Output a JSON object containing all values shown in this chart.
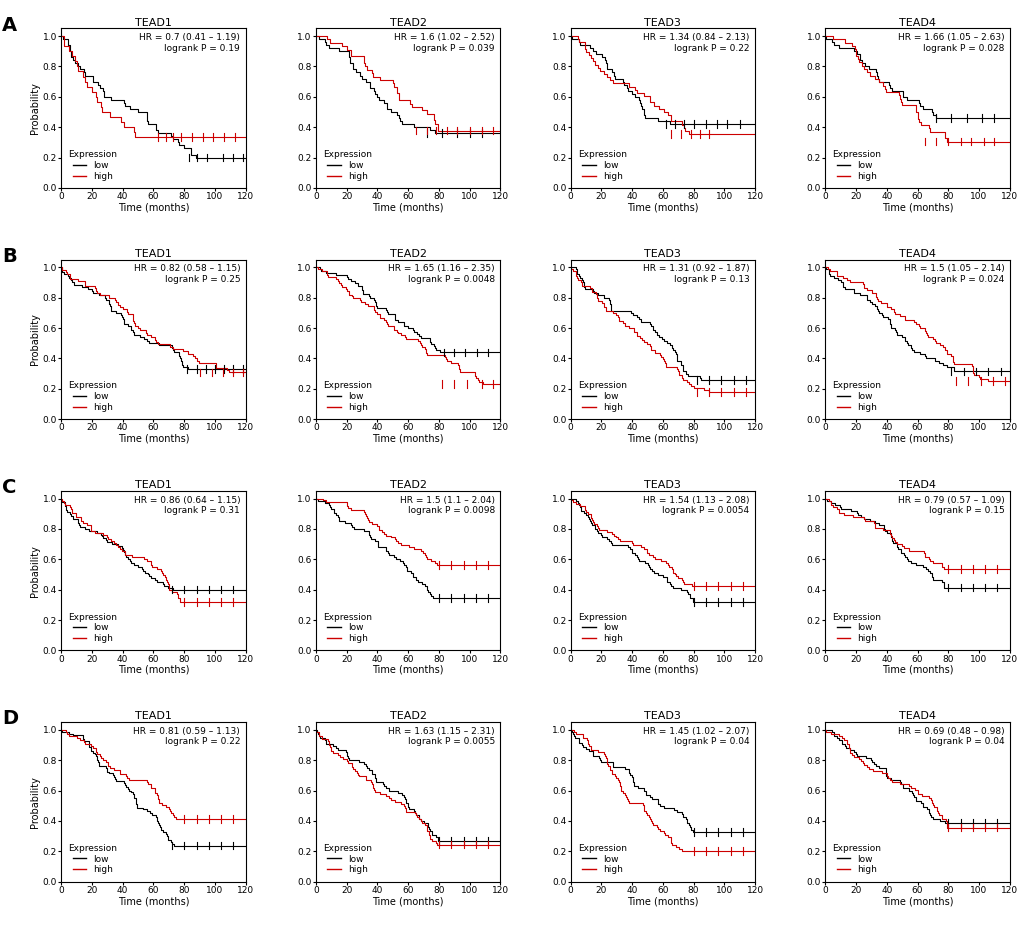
{
  "panels": [
    [
      {
        "title": "TEAD1",
        "hr": "HR = 0.7 (0.41 – 1.19)",
        "p": "logrank P = 0.19"
      },
      {
        "title": "TEAD2",
        "hr": "HR = 1.6 (1.02 – 2.52)",
        "p": "logrank P = 0.039"
      },
      {
        "title": "TEAD3",
        "hr": "HR = 1.34 (0.84 – 2.13)",
        "p": "logrank P = 0.22"
      },
      {
        "title": "TEAD4",
        "hr": "HR = 1.66 (1.05 – 2.63)",
        "p": "logrank P = 0.028"
      }
    ],
    [
      {
        "title": "TEAD1",
        "hr": "HR = 0.82 (0.58 – 1.15)",
        "p": "logrank P = 0.25"
      },
      {
        "title": "TEAD2",
        "hr": "HR = 1.65 (1.16 – 2.35)",
        "p": "logrank P = 0.0048"
      },
      {
        "title": "TEAD3",
        "hr": "HR = 1.31 (0.92 – 1.87)",
        "p": "logrank P = 0.13"
      },
      {
        "title": "TEAD4",
        "hr": "HR = 1.5 (1.05 – 2.14)",
        "p": "logrank P = 0.024"
      }
    ],
    [
      {
        "title": "TEAD1",
        "hr": "HR = 0.86 (0.64 – 1.15)",
        "p": "logrank P = 0.31"
      },
      {
        "title": "TEAD2",
        "hr": "HR = 1.5 (1.1 – 2.04)",
        "p": "logrank P = 0.0098"
      },
      {
        "title": "TEAD3",
        "hr": "HR = 1.54 (1.13 – 2.08)",
        "p": "logrank P = 0.0054"
      },
      {
        "title": "TEAD4",
        "hr": "HR = 0.79 (0.57 – 1.09)",
        "p": "logrank P = 0.15"
      }
    ],
    [
      {
        "title": "TEAD1",
        "hr": "HR = 0.81 (0.59 – 1.13)",
        "p": "logrank P = 0.22"
      },
      {
        "title": "TEAD2",
        "hr": "HR = 1.63 (1.15 – 2.31)",
        "p": "logrank P = 0.0055"
      },
      {
        "title": "TEAD3",
        "hr": "HR = 1.45 (1.02 – 2.07)",
        "p": "logrank P = 0.04"
      },
      {
        "title": "TEAD4",
        "hr": "HR = 0.69 (0.48 – 0.98)",
        "p": "logrank P = 0.04"
      }
    ]
  ],
  "row_labels": [
    "A",
    "B",
    "C",
    "D"
  ],
  "low_color": "#000000",
  "high_color": "#cc0000",
  "xlabel": "Time (months)",
  "ylabel": "Probability",
  "xticks": [
    0,
    20,
    40,
    60,
    80,
    100,
    120
  ],
  "yticks": [
    0.0,
    0.2,
    0.4,
    0.6,
    0.8,
    1.0
  ]
}
